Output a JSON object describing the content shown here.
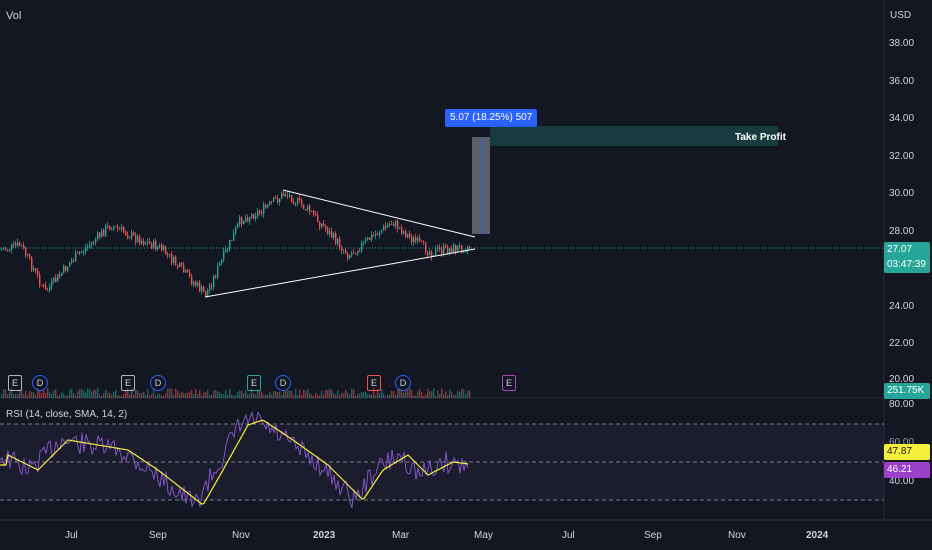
{
  "header": {
    "vol_label": "Vol",
    "currency": "USD"
  },
  "price_axis": {
    "ticks": [
      "38.00",
      "36.00",
      "34.00",
      "32.00",
      "30.00",
      "28.00",
      "24.00",
      "22.00",
      "20.00"
    ]
  },
  "rsi_axis": {
    "ticks": [
      "80.00",
      "40.00"
    ]
  },
  "time_axis": {
    "ticks": [
      "Jul",
      "Sep",
      "Nov",
      "2023",
      "Mar",
      "May",
      "Jul",
      "Sep",
      "Nov",
      "2024"
    ]
  },
  "labels": {
    "last_price": "27.07",
    "countdown": "03:47:39",
    "volume": "251.75K",
    "rsi_title": "RSI (14, close, SMA, 14, 2)",
    "rsi_sma": "47.87",
    "rsi_value": "46.21",
    "measure": "5.07 (18.25%) 507",
    "take_profit": "Take Profit",
    "rsi_upper_partial": "60.00"
  },
  "events": [
    {
      "type": "E",
      "label": "E",
      "color": "#b2b5be"
    },
    {
      "type": "D",
      "label": "D",
      "color": "#2962ff"
    },
    {
      "type": "E",
      "label": "E",
      "color": "#b2b5be"
    },
    {
      "type": "D",
      "label": "D",
      "color": "#2962ff"
    },
    {
      "type": "E",
      "label": "E",
      "color": "#26a69a"
    },
    {
      "type": "D",
      "label": "D",
      "color": "#2962ff"
    },
    {
      "type": "E",
      "label": "E",
      "color": "#ef5350"
    },
    {
      "type": "D",
      "label": "D",
      "color": "#2962ff"
    },
    {
      "type": "E",
      "label": "E",
      "color": "#ab47bc"
    }
  ],
  "colors": {
    "up": "#26a69a",
    "down": "#ef5350",
    "rsi": "#7e57c2",
    "rsi_sma": "#f5ee3a",
    "background": "#131722",
    "last_price_bg": "#26a69a",
    "rsi_sma_bg": "#f5ee3a",
    "rsi_bg": "#9c40c9",
    "measure_bg": "#2962ff"
  }
}
